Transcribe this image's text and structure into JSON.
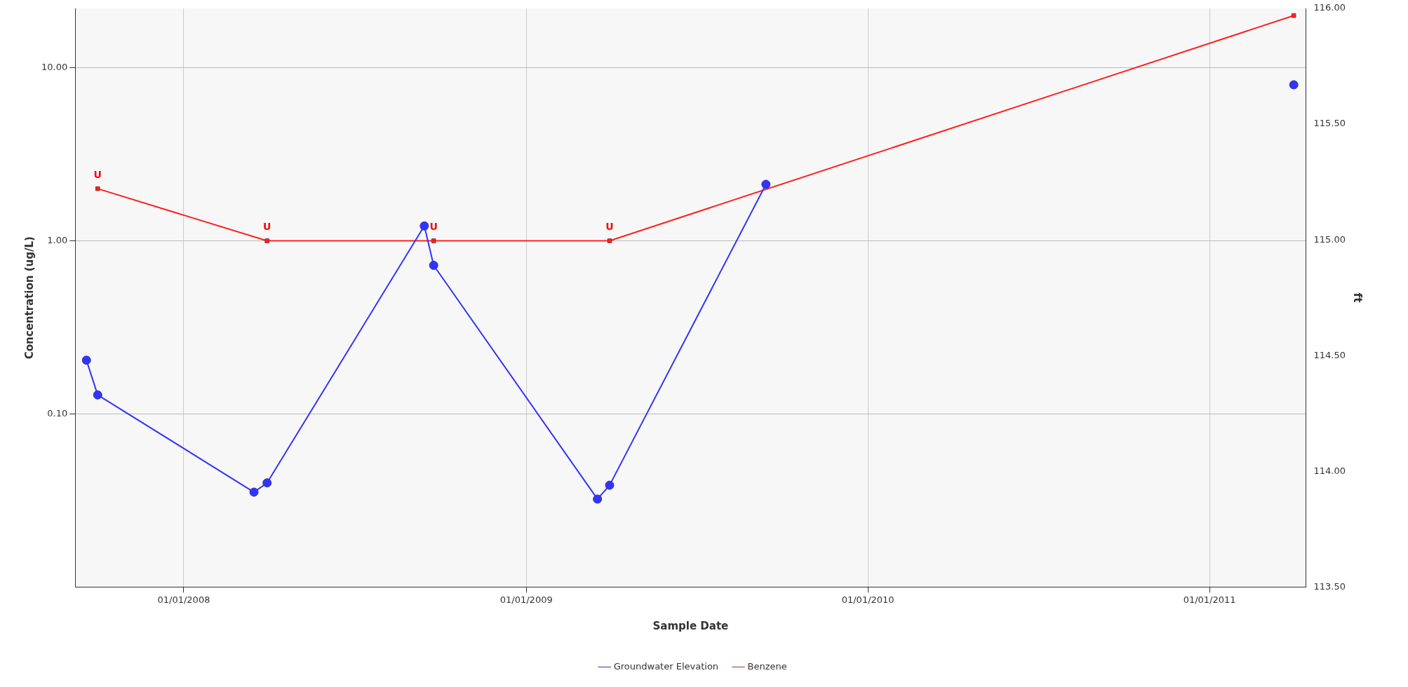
{
  "chart_data": {
    "type": "line",
    "xlabel": "Sample Date",
    "ylabel": "Concentration (ug/L)",
    "y2label": "ft",
    "xlim": [
      "2007-09-07",
      "2011-04-14"
    ],
    "xticks": [
      {
        "value": "2008-01-01",
        "label": "01/01/2008"
      },
      {
        "value": "2009-01-01",
        "label": "01/01/2009"
      },
      {
        "value": "2010-01-01",
        "label": "01/01/2010"
      },
      {
        "value": "2011-01-01",
        "label": "01/01/2011"
      }
    ],
    "log": "y",
    "ylim": [
      0.01,
      22
    ],
    "yticks": [
      {
        "value": 0.1,
        "label": "0.10"
      },
      {
        "value": 1,
        "label": "1.00"
      },
      {
        "value": 10,
        "label": "10.00"
      }
    ],
    "y2lim": [
      113.5,
      116
    ],
    "y2ticks": [
      {
        "value": 113.5,
        "label": "113.50"
      },
      {
        "value": 114,
        "label": "114.00"
      },
      {
        "value": 114.5,
        "label": "114.50"
      },
      {
        "value": 115,
        "label": "115.00"
      },
      {
        "value": 115.5,
        "label": "115.50"
      },
      {
        "value": 116,
        "label": "116.00"
      }
    ],
    "grid": true,
    "legend": "bottom",
    "series": [
      {
        "name": "Groundwater Elevation",
        "color": "#3333ff",
        "axis": "y2",
        "marker": "circle",
        "x": [
          "2007-09-19",
          "2007-10-01",
          "2008-03-16",
          "2008-03-30",
          "2008-09-14",
          "2008-09-24",
          "2009-03-18",
          "2009-03-31",
          "2009-09-14",
          "2010-06-01",
          "2011-04-01"
        ],
        "values": [
          114.48,
          114.33,
          113.91,
          113.95,
          115.06,
          114.89,
          113.88,
          113.94,
          115.24,
          null,
          115.67
        ]
      },
      {
        "name": "Benzene",
        "color": "#ff2020",
        "marker": "square",
        "x": [
          "2007-10-01",
          "2008-03-30",
          "2008-09-24",
          "2009-03-31",
          "2011-04-01"
        ],
        "values": [
          2,
          1,
          1,
          1,
          20
        ]
      }
    ],
    "annotations": [
      {
        "text": "U",
        "x": "2007-10-01",
        "y": 2
      },
      {
        "text": "U",
        "x": "2008-03-30",
        "y": 1
      },
      {
        "text": "U",
        "x": "2008-09-24",
        "y": 1
      },
      {
        "text": "U",
        "x": "2009-03-31",
        "y": 1
      }
    ]
  }
}
